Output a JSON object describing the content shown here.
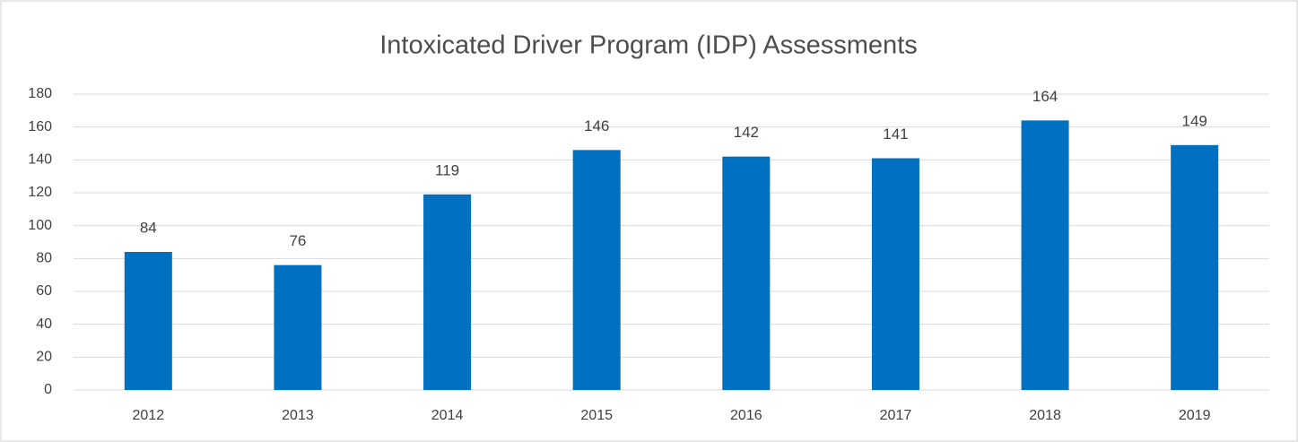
{
  "chart_data": {
    "type": "bar",
    "title": "Intoxicated Driver Program (IDP) Assessments",
    "categories": [
      "2012",
      "2013",
      "2014",
      "2015",
      "2016",
      "2017",
      "2018",
      "2019"
    ],
    "values": [
      84,
      76,
      119,
      146,
      142,
      141,
      164,
      149
    ],
    "color": "#0070c0",
    "ylim": [
      0,
      180
    ],
    "yticks": [
      0,
      20,
      40,
      60,
      80,
      100,
      120,
      140,
      160,
      180
    ],
    "grid": true
  }
}
